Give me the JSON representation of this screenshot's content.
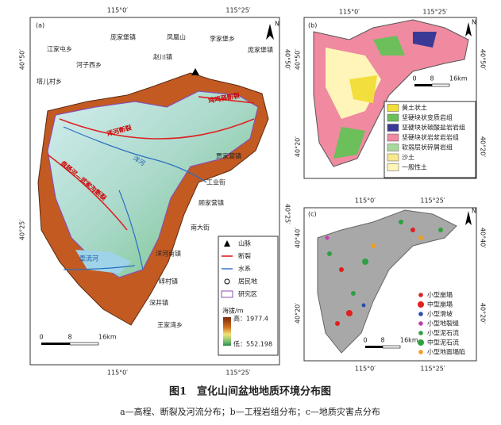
{
  "panels": [
    {
      "label": "(a)",
      "top_ticks": [
        "115°0′",
        "115°25′"
      ],
      "bottom_ticks": [
        "115°0′",
        "115°25′"
      ],
      "left_ticks": [
        "40°50′",
        "40°25′"
      ],
      "right_ticks": [
        "40°50′",
        "40°25′"
      ],
      "north": "N",
      "places": [
        "江家屯乡",
        "庞家堡镇",
        "凤凰山",
        "李家堡乡",
        "庞家堡镇",
        "河子西乡",
        "赵川镇",
        "塔儿村乡",
        "贾家营镇",
        "工业街",
        "顾家营镇",
        "南大街",
        "洋河南镇",
        "崞村镇",
        "深井镇",
        "王家湾乡"
      ],
      "faults": [
        "洋河断裂",
        "盘肠河—武家沟断裂",
        "鸡鸣驿断裂"
      ],
      "rivers": [
        "洋河",
        "壶流河"
      ],
      "legend": [
        "山脉",
        "断裂",
        "水系",
        "居民地",
        "研究区"
      ],
      "elevation_title": "海拔/m",
      "elevation_high": "高：1977.4",
      "elevation_low": "低：552.198",
      "scale": [
        "0",
        "8",
        "16km"
      ]
    },
    {
      "label": "(b)",
      "top_ticks": [
        "115°0′",
        "115°25′"
      ],
      "left_ticks": [
        "40°50′",
        "40°20′"
      ],
      "right_ticks": [
        "40°50′",
        "40°20′"
      ],
      "north": "N",
      "legend": [
        {
          "name": "黄土状土",
          "color": "#f2de3c"
        },
        {
          "name": "坚硬块状变质岩组",
          "color": "#6cbf5a"
        },
        {
          "name": "坚硬块状碳酸盐岩岩组",
          "color": "#3a3a96"
        },
        {
          "name": "坚硬块状岩浆岩岩组",
          "color": "#ef8aa0"
        },
        {
          "name": "软弱层状碎屑岩组",
          "color": "#a9d89c"
        },
        {
          "name": "沙土",
          "color": "#f7e88e"
        },
        {
          "name": "一般性土",
          "color": "#fff5b8"
        }
      ],
      "scale": [
        "0",
        "8",
        "16km"
      ]
    },
    {
      "label": "(c)",
      "top_ticks": [
        "115°0′",
        "115°25′"
      ],
      "bottom_ticks": [
        "115°0′",
        "115°25′"
      ],
      "left_ticks": [
        "40°40′",
        "40°20′"
      ],
      "right_ticks": [
        "40°40′",
        "40°20′"
      ],
      "north": "N",
      "legend": [
        {
          "name": "小型崩塌",
          "color": "#e02020"
        },
        {
          "name": "中型崩塌",
          "color": "#e02020"
        },
        {
          "name": "小型滑坡",
          "color": "#2a4fb0"
        },
        {
          "name": "小型地裂缝",
          "color": "#c040b0"
        },
        {
          "name": "小型泥石流",
          "color": "#2fa040"
        },
        {
          "name": "中型泥石流",
          "color": "#2fa040"
        },
        {
          "name": "小型地面塌陷",
          "color": "#f0a020"
        }
      ],
      "scale": [
        "0",
        "8",
        "16km"
      ]
    }
  ],
  "caption": {
    "title": "图1　宣化山间盆地地质环境分布图",
    "subtitle": "a—高程、断裂及河流分布；b—工程岩组分布；c—地质灾害点分布"
  }
}
